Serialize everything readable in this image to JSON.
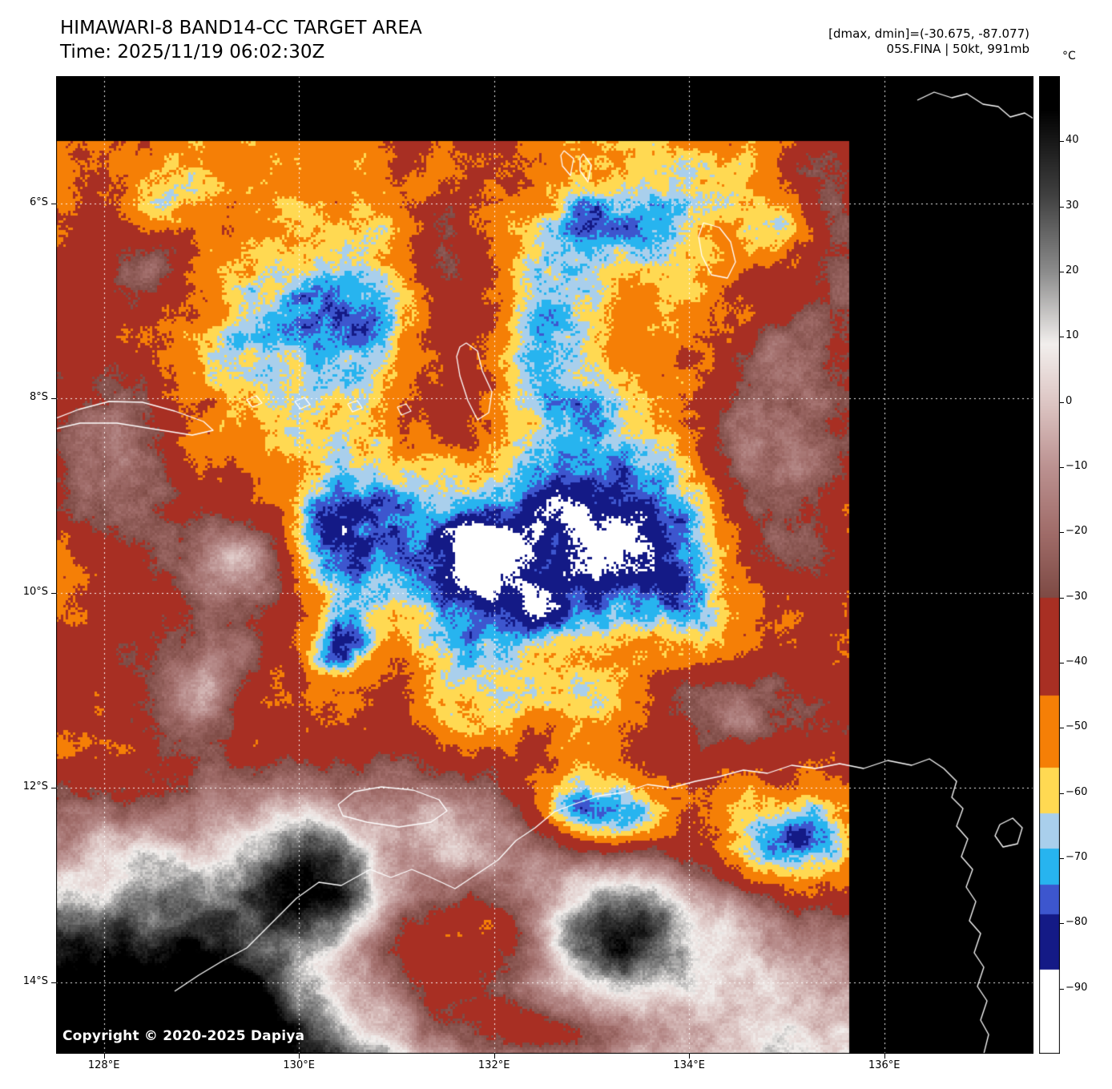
{
  "header": {
    "title": "HIMAWARI-8 BAND14-CC TARGET AREA",
    "time_label": "Time: 2025/11/19 06:02:30Z",
    "dmax_dmin": "[dmax, dmin]=(-30.675, -87.077)",
    "storm_info": "05S.FINA | 50kt, 991mb"
  },
  "copyright": "Copyright © 2020-2025 Dapiya",
  "colorbar": {
    "unit": "°C",
    "tick_labels": [
      "40",
      "30",
      "20",
      "10",
      "0",
      "−10",
      "−20",
      "−30",
      "−40",
      "−50",
      "−60",
      "−70",
      "−80",
      "−90"
    ],
    "tick_values": [
      40,
      30,
      20,
      10,
      0,
      -10,
      -20,
      -30,
      -40,
      -50,
      -60,
      -70,
      -80,
      -90
    ],
    "top_value": 50,
    "bottom_value": -100
  },
  "axes": {
    "lon_tick_labels": [
      "128°E",
      "130°E",
      "132°E",
      "134°E",
      "136°E"
    ],
    "lon_tick_values": [
      128,
      130,
      132,
      134,
      136
    ],
    "lat_tick_labels": [
      "6°S",
      "8°S",
      "10°S",
      "12°S",
      "14°S"
    ],
    "lat_tick_values": [
      6,
      8,
      10,
      12,
      14
    ],
    "extent": {
      "lon_min": 127.51,
      "lon_max": 137.53,
      "lat_s_min": 4.69,
      "lat_s_max": 14.73
    }
  },
  "colormap": {
    "warm_stops": [
      {
        "t": 45,
        "color": "#000000"
      },
      {
        "t": 32,
        "color": "#3f3f3f"
      },
      {
        "t": 20,
        "color": "#8c8c8c"
      },
      {
        "t": 9,
        "color": "#f2efed"
      },
      {
        "t": 0,
        "color": "#ddc6c4"
      },
      {
        "t": -10,
        "color": "#bb9190"
      },
      {
        "t": -20,
        "color": "#a06c69"
      },
      {
        "t": -30,
        "color": "#7d4a44"
      }
    ],
    "cold_bands": [
      {
        "from": -30,
        "to": -45,
        "color": "#a82f23"
      },
      {
        "from": -45,
        "to": -56,
        "color": "#f57f06"
      },
      {
        "from": -56,
        "to": -63,
        "color": "#ffd952"
      },
      {
        "from": -63,
        "to": -68.5,
        "color": "#a9cfec"
      },
      {
        "from": -68.5,
        "to": -74,
        "color": "#27b4ef"
      },
      {
        "from": -74,
        "to": -78.5,
        "color": "#3d56ce"
      },
      {
        "from": -78.5,
        "to": -87,
        "color": "#141a86"
      },
      {
        "from": -87,
        "to": -110,
        "color": "#ffffff"
      }
    ]
  }
}
